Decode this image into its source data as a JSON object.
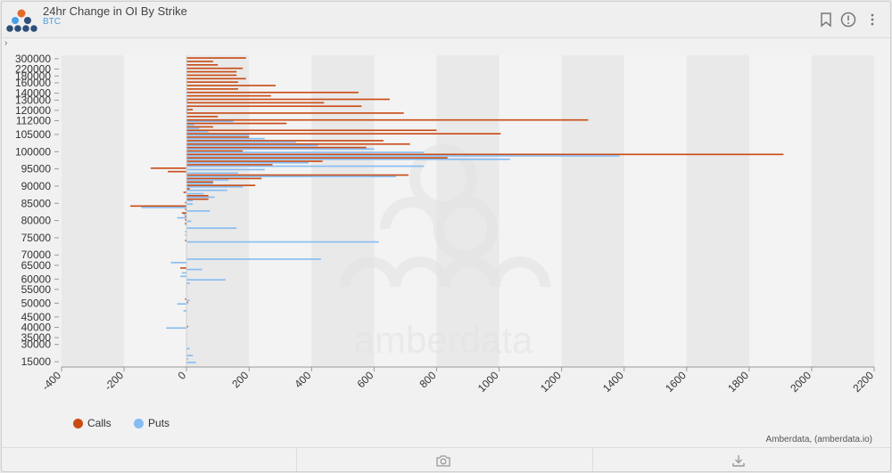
{
  "header": {
    "title": "24hr Change in OI By Strike",
    "subtitle": "BTC"
  },
  "icons": {
    "logo": "amberdata-logo-icon",
    "bookmark": "bookmark-icon",
    "info": "info-icon",
    "menu": "more-vertical-icon",
    "collapse": "chevron-right-icon",
    "camera": "camera-icon",
    "download": "download-icon"
  },
  "legend": {
    "calls_label": "Calls",
    "puts_label": "Puts"
  },
  "credit": "Amberdata, (amberdata.io)",
  "watermark_text": "amberdata",
  "colors": {
    "calls": "#c94b14",
    "puts": "#86bcf2",
    "accent": "#4b9fe5"
  },
  "chart_data": {
    "type": "bar",
    "orientation": "horizontal",
    "xlim": [
      -400,
      2200
    ],
    "x_ticks": [
      -400,
      -200,
      0,
      200,
      400,
      600,
      800,
      1000,
      1200,
      1400,
      1600,
      1800,
      2000,
      2200
    ],
    "y_tick_labels": [
      "300000",
      "220000",
      "180000",
      "160000",
      "140000",
      "130000",
      "120000",
      "112000",
      "105000",
      "100000",
      "95000",
      "90000",
      "85000",
      "80000",
      "75000",
      "70000",
      "65000",
      "60000",
      "55000",
      "50000",
      "45000",
      "40000",
      "35000",
      "30000",
      "15000"
    ],
    "grid": true,
    "legend_position": "bottom-left",
    "categories": [
      "300000",
      "280000",
      "240000",
      "220000",
      "200000",
      "180000",
      "170000",
      "160000",
      "150000",
      "145000",
      "140000",
      "135000",
      "130000",
      "125000",
      "122000",
      "120000",
      "118000",
      "115000",
      "112000",
      "110000",
      "108000",
      "106000",
      "105000",
      "104000",
      "103000",
      "102000",
      "101000",
      "100000",
      "99000",
      "98000",
      "97000",
      "96000",
      "95000",
      "94000",
      "93000",
      "92000",
      "91000",
      "90000",
      "89000",
      "88000",
      "87000",
      "86000",
      "85000",
      "84000",
      "83000",
      "82000",
      "81000",
      "80000",
      "79000",
      "78000",
      "77000",
      "76000",
      "75000",
      "74000",
      "73000",
      "72000",
      "71000",
      "70000",
      "68000",
      "66000",
      "65000",
      "64000",
      "62000",
      "61000",
      "60000",
      "58000",
      "56000",
      "55000",
      "54000",
      "52000",
      "51000",
      "50000",
      "49000",
      "48000",
      "46000",
      "45000",
      "44000",
      "42000",
      "40000",
      "38000",
      "36000",
      "35000",
      "32000",
      "30000",
      "28000",
      "26000",
      "24000",
      "20000",
      "15000"
    ],
    "series": [
      {
        "name": "Calls",
        "values": [
          190,
          85,
          100,
          180,
          160,
          160,
          190,
          165,
          285,
          165,
          550,
          270,
          650,
          440,
          560,
          20,
          695,
          100,
          1285,
          320,
          85,
          800,
          1005,
          200,
          630,
          715,
          575,
          180,
          1910,
          835,
          435,
          275,
          -115,
          -60,
          710,
          240,
          85,
          220,
          10,
          -10,
          70,
          70,
          -5,
          -180,
          -5,
          -15,
          -5,
          -5,
          -5,
          0,
          0,
          0,
          0,
          -5,
          0,
          0,
          0,
          0,
          0,
          0,
          0,
          -20,
          0,
          0,
          0,
          0,
          0,
          0,
          0,
          0,
          -5,
          5,
          0,
          0,
          0,
          0,
          0,
          0,
          5,
          0,
          0,
          0,
          0,
          0,
          0,
          0,
          0,
          0,
          0
        ]
      },
      {
        "name": "Puts",
        "values": [
          0,
          0,
          0,
          0,
          0,
          0,
          0,
          0,
          0,
          0,
          0,
          0,
          5,
          0,
          5,
          5,
          0,
          0,
          150,
          25,
          40,
          70,
          200,
          250,
          350,
          420,
          600,
          760,
          1385,
          1035,
          390,
          760,
          250,
          165,
          670,
          135,
          85,
          180,
          130,
          55,
          90,
          20,
          20,
          -145,
          75,
          -10,
          -30,
          15,
          -5,
          160,
          -5,
          -5,
          0,
          615,
          0,
          0,
          0,
          0,
          430,
          -50,
          0,
          50,
          -15,
          -20,
          125,
          10,
          0,
          0,
          0,
          0,
          10,
          -30,
          0,
          -10,
          0,
          0,
          0,
          0,
          -65,
          0,
          0,
          0,
          0,
          0,
          10,
          0,
          20,
          5,
          30
        ]
      }
    ]
  }
}
